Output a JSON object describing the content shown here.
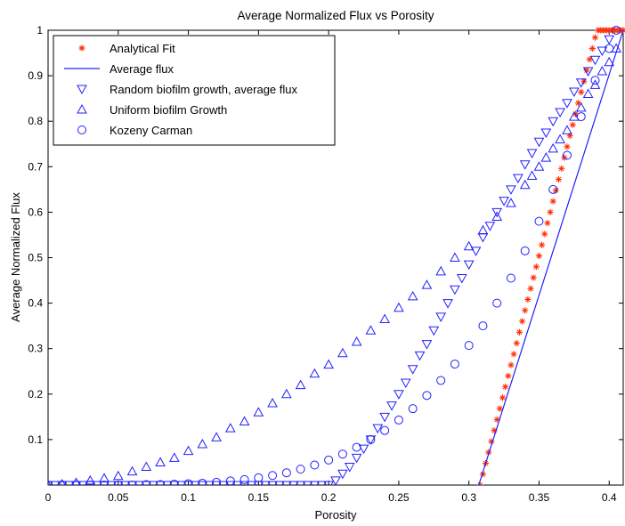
{
  "chart_data": {
    "type": "scatter",
    "title": "Average Normalized Flux vs Porosity",
    "xlabel": "Porosity",
    "ylabel": "Average Normalized Flux",
    "xlim": [
      0,
      0.41
    ],
    "ylim": [
      0,
      1
    ],
    "x_ticks": [
      "0",
      "0.05",
      "0.1",
      "0.15",
      "0.2",
      "0.25",
      "0.3",
      "0.35",
      "0.4"
    ],
    "y_ticks": [
      "0.1",
      "0.2",
      "0.3",
      "0.4",
      "0.5",
      "0.6",
      "0.7",
      "0.8",
      "0.9",
      "1"
    ],
    "grid": false,
    "legend_position": "top-left",
    "colors": {
      "analytical": "#ff2a00",
      "blue": "#2020ff",
      "axis": "#000000"
    },
    "series": [
      {
        "name": "Analytical Fit",
        "marker": "asterisk",
        "color": "#ff2a00",
        "x": [
          0.308,
          0.31,
          0.312,
          0.314,
          0.316,
          0.318,
          0.32,
          0.322,
          0.324,
          0.326,
          0.328,
          0.33,
          0.332,
          0.334,
          0.336,
          0.338,
          0.34,
          0.342,
          0.344,
          0.346,
          0.348,
          0.35,
          0.352,
          0.354,
          0.356,
          0.358,
          0.36,
          0.362,
          0.364,
          0.366,
          0.368,
          0.37,
          0.372,
          0.374,
          0.376,
          0.378,
          0.38,
          0.382,
          0.384,
          0.386,
          0.388,
          0.39,
          0.392,
          0.394,
          0.396,
          0.398,
          0.4,
          0.402,
          0.404,
          0.406,
          0.408,
          0.41
        ],
        "y": [
          0,
          0.024,
          0.048,
          0.072,
          0.096,
          0.12,
          0.144,
          0.168,
          0.192,
          0.216,
          0.24,
          0.264,
          0.288,
          0.312,
          0.336,
          0.36,
          0.384,
          0.408,
          0.432,
          0.456,
          0.48,
          0.504,
          0.528,
          0.552,
          0.576,
          0.6,
          0.624,
          0.648,
          0.672,
          0.696,
          0.72,
          0.744,
          0.768,
          0.792,
          0.816,
          0.84,
          0.864,
          0.888,
          0.912,
          0.936,
          0.96,
          0.984,
          1,
          1,
          1,
          1,
          1,
          1,
          1,
          1,
          1,
          1
        ]
      },
      {
        "name": "Average flux",
        "marker": "line",
        "color": "#2020ff",
        "x": [
          0.307,
          0.41
        ],
        "y": [
          0,
          1
        ]
      },
      {
        "name": "Random biofilm growth, average flux",
        "marker": "triangle-down",
        "color": "#2020ff",
        "x": [
          0,
          0.005,
          0.01,
          0.015,
          0.02,
          0.025,
          0.03,
          0.035,
          0.04,
          0.045,
          0.05,
          0.055,
          0.06,
          0.065,
          0.07,
          0.075,
          0.08,
          0.085,
          0.09,
          0.095,
          0.1,
          0.105,
          0.11,
          0.115,
          0.12,
          0.125,
          0.13,
          0.135,
          0.14,
          0.145,
          0.15,
          0.155,
          0.16,
          0.165,
          0.17,
          0.175,
          0.18,
          0.185,
          0.19,
          0.195,
          0.2,
          0.205,
          0.21,
          0.215,
          0.22,
          0.225,
          0.23,
          0.235,
          0.24,
          0.245,
          0.25,
          0.255,
          0.26,
          0.265,
          0.27,
          0.275,
          0.28,
          0.285,
          0.29,
          0.295,
          0.3,
          0.305,
          0.31,
          0.315,
          0.32,
          0.325,
          0.33,
          0.335,
          0.34,
          0.345,
          0.35,
          0.355,
          0.36,
          0.365,
          0.37,
          0.375,
          0.38,
          0.385,
          0.39,
          0.395,
          0.4
        ],
        "y": [
          0,
          0,
          0,
          0,
          0,
          0,
          0,
          0,
          0,
          0,
          0,
          0,
          0,
          0,
          0,
          0,
          0,
          0,
          0,
          0,
          0,
          0,
          0,
          0,
          0,
          0,
          0,
          0,
          0,
          0,
          0,
          0,
          0,
          0,
          0,
          0,
          0,
          0,
          0,
          0,
          0,
          0.01,
          0.025,
          0.04,
          0.06,
          0.08,
          0.1,
          0.125,
          0.15,
          0.175,
          0.2,
          0.225,
          0.255,
          0.285,
          0.31,
          0.34,
          0.37,
          0.4,
          0.43,
          0.455,
          0.485,
          0.515,
          0.545,
          0.57,
          0.6,
          0.625,
          0.65,
          0.675,
          0.705,
          0.73,
          0.755,
          0.775,
          0.8,
          0.82,
          0.84,
          0.865,
          0.885,
          0.91,
          0.935,
          0.955,
          0.98
        ]
      },
      {
        "name": "Uniform biofilm Growth",
        "marker": "triangle-up",
        "color": "#2020ff",
        "x": [
          0,
          0.01,
          0.02,
          0.03,
          0.04,
          0.05,
          0.06,
          0.07,
          0.08,
          0.09,
          0.1,
          0.11,
          0.12,
          0.13,
          0.14,
          0.15,
          0.16,
          0.17,
          0.18,
          0.19,
          0.2,
          0.21,
          0.22,
          0.23,
          0.24,
          0.25,
          0.26,
          0.27,
          0.28,
          0.29,
          0.3,
          0.31,
          0.32,
          0.33,
          0.34,
          0.345,
          0.35,
          0.355,
          0.36,
          0.365,
          0.37,
          0.375,
          0.38,
          0.385,
          0.39,
          0.395,
          0.4,
          0.405
        ],
        "y": [
          0,
          0.002,
          0.005,
          0.01,
          0.015,
          0.02,
          0.03,
          0.04,
          0.05,
          0.06,
          0.075,
          0.09,
          0.105,
          0.125,
          0.14,
          0.16,
          0.18,
          0.2,
          0.22,
          0.245,
          0.265,
          0.29,
          0.315,
          0.34,
          0.365,
          0.39,
          0.415,
          0.44,
          0.47,
          0.5,
          0.525,
          0.56,
          0.59,
          0.62,
          0.66,
          0.68,
          0.7,
          0.72,
          0.74,
          0.76,
          0.78,
          0.81,
          0.83,
          0.86,
          0.88,
          0.91,
          0.93,
          0.96
        ]
      },
      {
        "name": "Kozeny Carman",
        "marker": "circle",
        "color": "#2020ff",
        "x": [
          0,
          0.01,
          0.02,
          0.03,
          0.04,
          0.05,
          0.06,
          0.07,
          0.08,
          0.09,
          0.1,
          0.11,
          0.12,
          0.13,
          0.14,
          0.15,
          0.16,
          0.17,
          0.18,
          0.19,
          0.2,
          0.21,
          0.22,
          0.23,
          0.24,
          0.25,
          0.26,
          0.27,
          0.28,
          0.29,
          0.3,
          0.31,
          0.32,
          0.33,
          0.34,
          0.35,
          0.36,
          0.37,
          0.38,
          0.39,
          0.4,
          0.405
        ],
        "y": [
          0,
          0,
          0,
          0,
          0,
          0,
          0,
          0.001,
          0.001,
          0.002,
          0.003,
          0.004,
          0.006,
          0.009,
          0.012,
          0.016,
          0.021,
          0.027,
          0.035,
          0.044,
          0.055,
          0.068,
          0.083,
          0.1,
          0.12,
          0.143,
          0.168,
          0.197,
          0.23,
          0.266,
          0.307,
          0.35,
          0.4,
          0.455,
          0.515,
          0.58,
          0.65,
          0.725,
          0.81,
          0.89,
          0.96,
          1.0
        ]
      }
    ]
  }
}
